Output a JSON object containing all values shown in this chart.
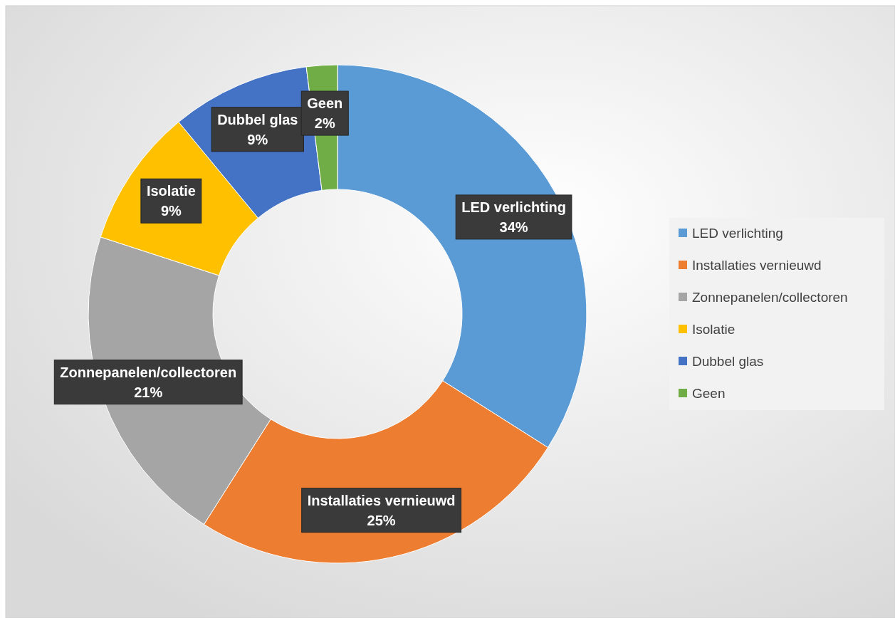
{
  "chart_data": {
    "type": "donut",
    "categories": [
      "LED verlichting",
      "Installaties vernieuwd",
      "Zonnepanelen/collectoren",
      "Isolatie",
      "Dubbel glas",
      "Geen"
    ],
    "values": [
      34,
      25,
      21,
      9,
      9,
      2
    ],
    "colors": [
      "#5b9bd5",
      "#ed7d31",
      "#a5a5a5",
      "#ffc000",
      "#4472c4",
      "#70ad47"
    ],
    "value_labels": [
      "34%",
      "25%",
      "21%",
      "9%",
      "9%",
      "2%"
    ],
    "legend": "right"
  }
}
